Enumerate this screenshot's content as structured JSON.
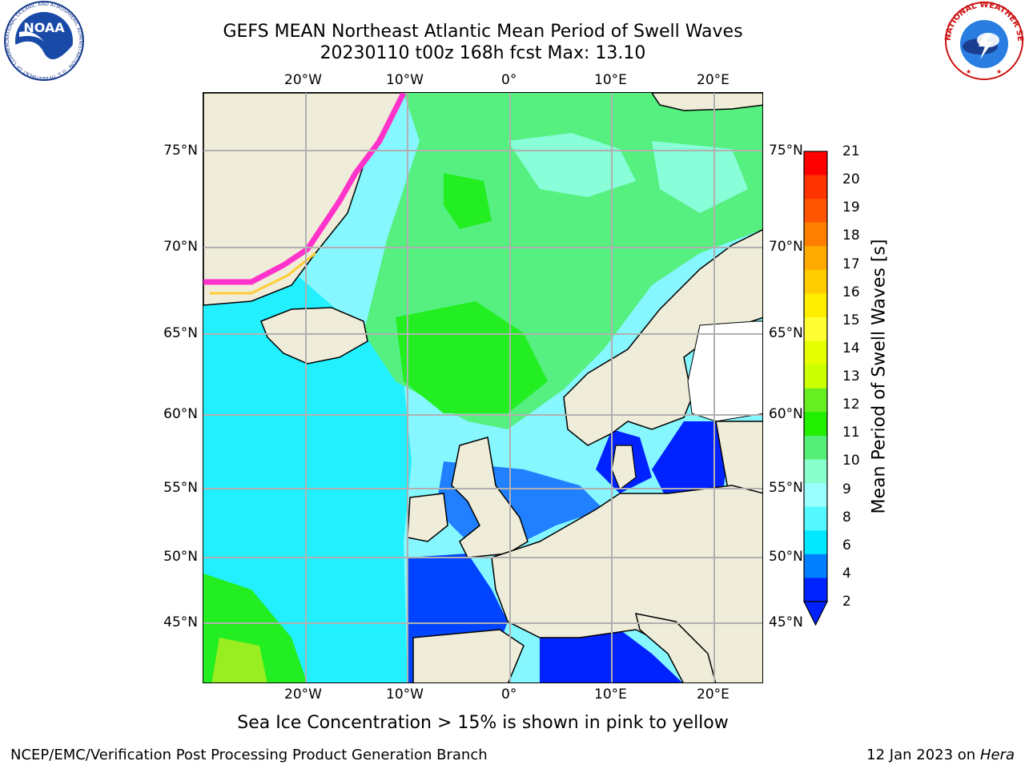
{
  "header": {
    "title": "GEFS MEAN Northeast Atlantic Mean Period of Swell Waves",
    "subtitle": "20230110 t00z 168h fcst   Max: 13.10"
  },
  "map": {
    "lon_labels": [
      "20°W",
      "10°W",
      "0°",
      "10°E",
      "20°E"
    ],
    "lat_labels": [
      "75°N",
      "70°N",
      "65°N",
      "60°N",
      "55°N",
      "50°N",
      "45°N"
    ]
  },
  "colorbar": {
    "label": "Mean Period of Swell Waves [s]",
    "ticks": [
      "21",
      "20",
      "19",
      "18",
      "17",
      "16",
      "15",
      "14",
      "13",
      "12",
      "11",
      "10",
      "9",
      "8",
      "6",
      "4",
      "2"
    ],
    "colors": [
      "#ff0000",
      "#ff3300",
      "#ff5500",
      "#ff8000",
      "#ffaa00",
      "#ffcc00",
      "#ffee00",
      "#ffff33",
      "#e5ff00",
      "#ccff00",
      "#66ee22",
      "#22ee00",
      "#55ee77",
      "#88ffcc",
      "#99ffff",
      "#55f8ff",
      "#00e8ff",
      "#0080ff",
      "#0022ff"
    ]
  },
  "footer": {
    "note": "Sea Ice Concentration > 15% is shown in pink to yellow",
    "credit": "NCEP/EMC/Verification Post Processing Product Generation Branch",
    "date": "12 Jan 2023 on ",
    "host": "Hera"
  },
  "logos": {
    "noaa": "NOAA",
    "noaa_ring": "NATIONAL OCEANIC AND ATMOSPHERIC ADMINISTRATION · U.S. DEPARTMENT OF COMMERCE",
    "nws_ring": "NATIONAL WEATHER SERVICE"
  }
}
